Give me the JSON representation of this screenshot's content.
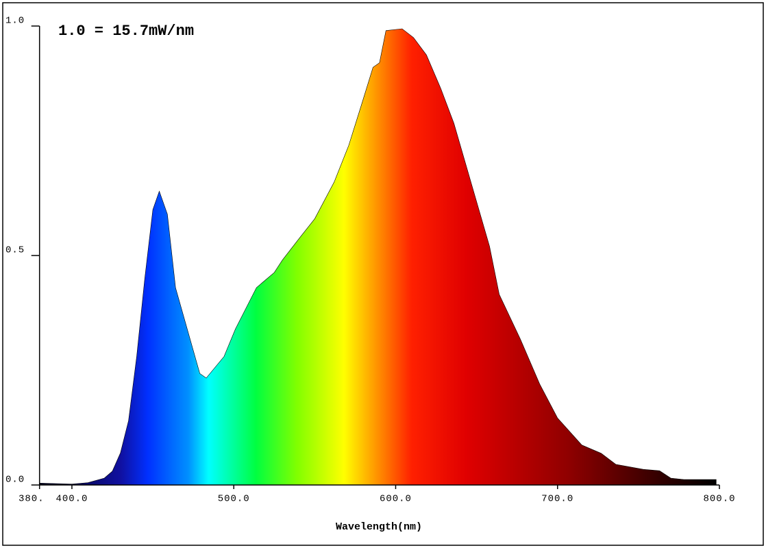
{
  "chart_data": {
    "type": "area",
    "annotation": "1.0 = 15.7mW/nm",
    "x_label": "Wavelength(nm)",
    "x": [
      380,
      400,
      410,
      420,
      425,
      430,
      435,
      440,
      445,
      450,
      454,
      459,
      464,
      479,
      483,
      494,
      501,
      514,
      525,
      530,
      541,
      550,
      562,
      571,
      579,
      586,
      590,
      594,
      604,
      611,
      619,
      628,
      636,
      647,
      658,
      664,
      677,
      689,
      700,
      715,
      727,
      736,
      753,
      763,
      770,
      778,
      798
    ],
    "values": [
      0.004,
      0.002,
      0.005,
      0.015,
      0.03,
      0.07,
      0.14,
      0.28,
      0.45,
      0.6,
      0.64,
      0.59,
      0.43,
      0.243,
      0.233,
      0.28,
      0.34,
      0.43,
      0.463,
      0.49,
      0.54,
      0.58,
      0.66,
      0.74,
      0.83,
      0.91,
      0.92,
      0.99,
      0.994,
      0.975,
      0.937,
      0.863,
      0.788,
      0.654,
      0.52,
      0.415,
      0.318,
      0.22,
      0.146,
      0.087,
      0.069,
      0.045,
      0.034,
      0.031,
      0.015,
      0.012,
      0.012
    ],
    "xlim": [
      380,
      800
    ],
    "ylim": [
      0,
      1
    ],
    "xticks": [
      {
        "value": 380,
        "label": "380."
      },
      {
        "value": 400,
        "label": "400.0"
      },
      {
        "value": 500,
        "label": "500.0"
      },
      {
        "value": 600,
        "label": "600.0"
      },
      {
        "value": 700,
        "label": "700.0"
      },
      {
        "value": 800,
        "label": "800.0"
      }
    ],
    "yticks": [
      {
        "value": 0,
        "label": "0.0"
      },
      {
        "value": 0.5,
        "label": "0.5"
      },
      {
        "value": 1,
        "label": "1.0"
      }
    ]
  }
}
